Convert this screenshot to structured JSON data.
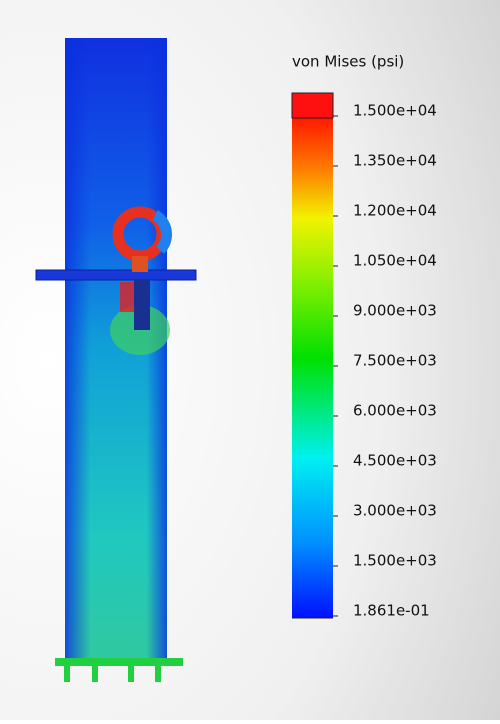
{
  "legend": {
    "title": "von Mises (psi)",
    "labels": [
      "1.500e+04",
      "1.350e+04",
      "1.200e+04",
      "1.050e+04",
      "9.000e+03",
      "7.500e+03",
      "6.000e+03",
      "4.500e+03",
      "3.000e+03",
      "1.500e+03",
      "1.861e-01"
    ]
  }
}
